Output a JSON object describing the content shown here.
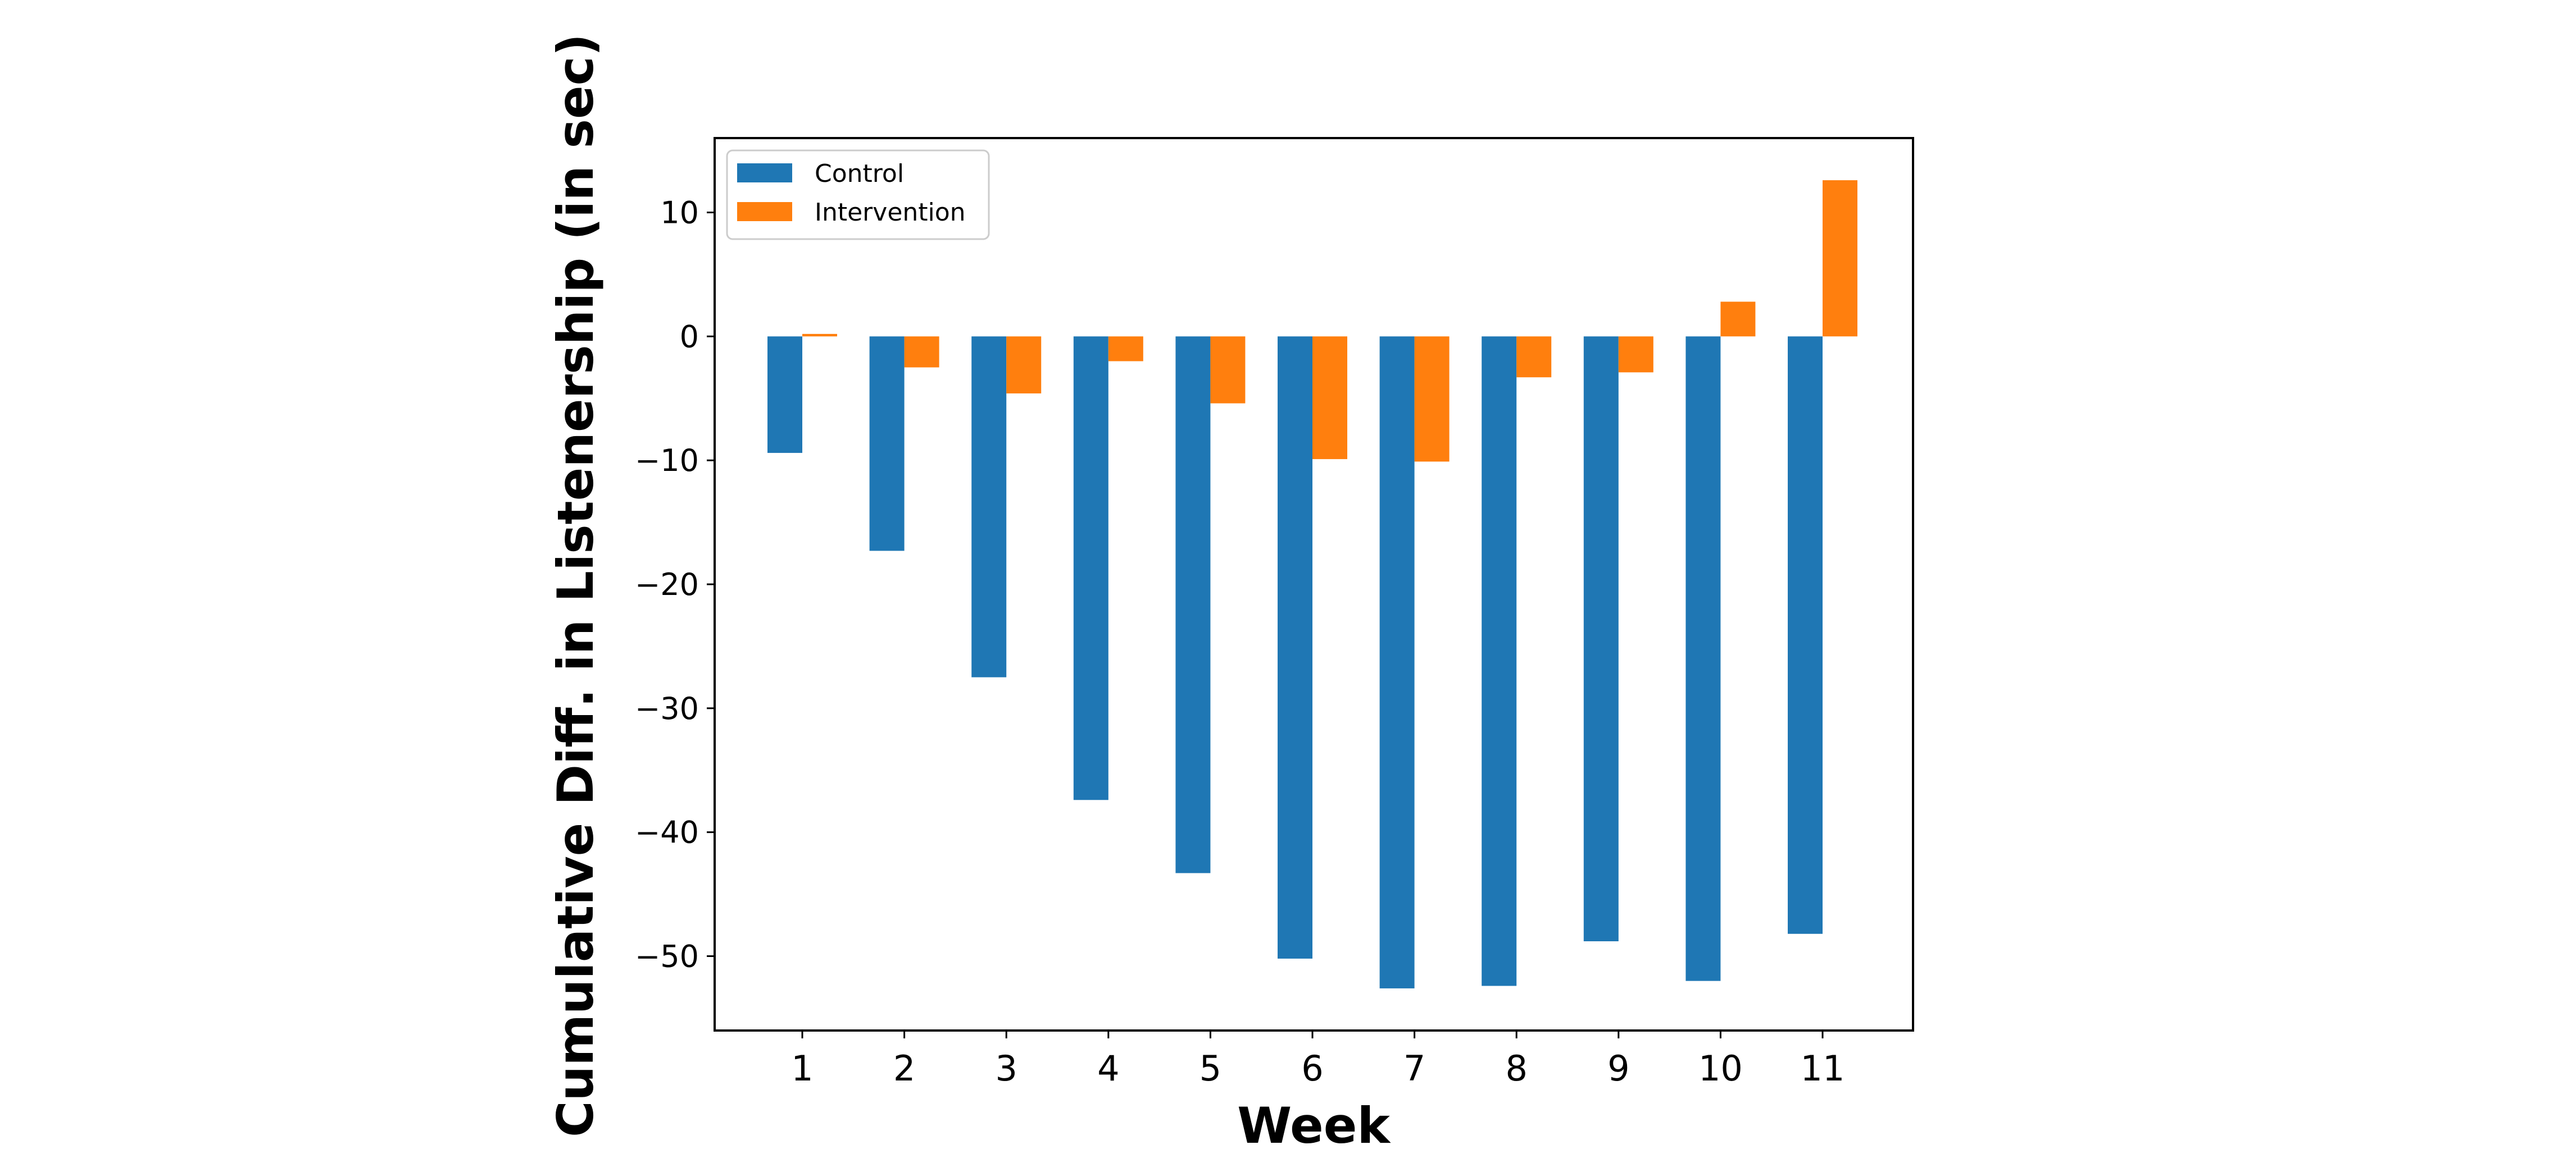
{
  "chart_data": {
    "type": "bar",
    "title": "",
    "xlabel": "Week",
    "ylabel": "Cumulative Diff. in Listenership (in sec)",
    "categories": [
      "1",
      "2",
      "3",
      "4",
      "5",
      "6",
      "7",
      "8",
      "9",
      "10",
      "11"
    ],
    "series": [
      {
        "name": "Control",
        "color": "#1f77b4",
        "values": [
          -9.4,
          -17.3,
          -27.5,
          -37.4,
          -43.3,
          -50.2,
          -52.6,
          -52.4,
          -48.8,
          -52.0,
          -48.2
        ]
      },
      {
        "name": "Intervention",
        "color": "#ff7f0e",
        "values": [
          0.2,
          -2.5,
          -4.6,
          -2.0,
          -5.4,
          -9.9,
          -10.1,
          -3.3,
          -2.9,
          2.8,
          12.6
        ]
      }
    ],
    "ylim": [
      -56,
      16
    ],
    "yticks": [
      10,
      0,
      -10,
      -20,
      -30,
      -40,
      -50
    ],
    "ytick_labels": [
      "10",
      "0",
      "−10",
      "−20",
      "−30",
      "−40",
      "−50"
    ],
    "grid": false,
    "legend_position": "top-left"
  }
}
